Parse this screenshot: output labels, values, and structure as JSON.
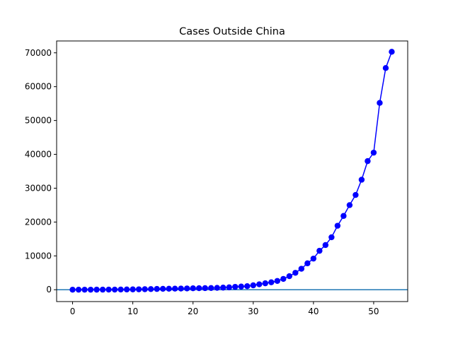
{
  "chart_data": {
    "type": "line",
    "title": "Cases Outside China",
    "xlabel": "",
    "ylabel": "",
    "xlim": [
      -2.65,
      55.65
    ],
    "ylim": [
      -3500,
      73500
    ],
    "xticks": [
      0,
      10,
      20,
      30,
      40,
      50
    ],
    "yticks": [
      0,
      10000,
      20000,
      30000,
      40000,
      50000,
      60000,
      70000
    ],
    "xtick_labels": [
      "0",
      "10",
      "20",
      "30",
      "40",
      "50"
    ],
    "ytick_labels": [
      "0",
      "10000",
      "20000",
      "30000",
      "40000",
      "50000",
      "60000",
      "70000"
    ],
    "grid": false,
    "legend": "none",
    "series_color": "#0000ff",
    "hline": {
      "y": 0,
      "color": "#1f77b4"
    },
    "series": [
      {
        "x": [
          0,
          1,
          2,
          3,
          4,
          5,
          6,
          7,
          8,
          9,
          10,
          11,
          12,
          13,
          14,
          15,
          16,
          17,
          18,
          19,
          20,
          21,
          22,
          23,
          24,
          25,
          26,
          27,
          28,
          29,
          30,
          31,
          32,
          33,
          34,
          35,
          36,
          37,
          38,
          39,
          40,
          41,
          42,
          43,
          44,
          45,
          46,
          47,
          48,
          49,
          50,
          51,
          52,
          53
        ],
        "values": [
          7,
          10,
          12,
          15,
          20,
          25,
          30,
          40,
          60,
          80,
          100,
          120,
          150,
          190,
          230,
          270,
          300,
          320,
          350,
          380,
          420,
          450,
          470,
          500,
          550,
          620,
          700,
          850,
          950,
          1050,
          1300,
          1600,
          1900,
          2200,
          2600,
          3200,
          4000,
          5000,
          6200,
          7800,
          9200,
          11500,
          13200,
          15500,
          18900,
          21800,
          25000,
          28000,
          32500,
          38000,
          40500,
          55200,
          65500,
          70300
        ]
      }
    ]
  }
}
